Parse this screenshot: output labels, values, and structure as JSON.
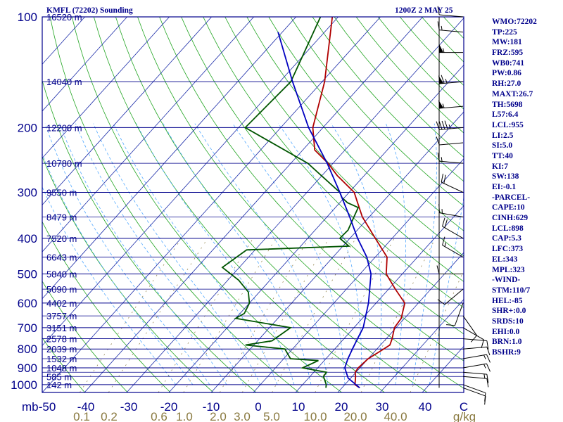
{
  "header": {
    "station_title": "KMFL (72202) Sounding",
    "time_label": "1200Z  2 MAY 25"
  },
  "stats": [
    "WMO:72202",
    "TP:225",
    "MW:181",
    "FRZ:595",
    "WB0:741",
    "PW:0.86",
    "RH:27.0",
    "MAXT:26.7",
    "TH:5698",
    "L57:6.4",
    "LCL:955",
    "LI:2.5",
    "SI:5.0",
    "TT:40",
    "KI:7",
    "SW:138",
    "EI:-0.1",
    "-PARCEL-",
    "CAPE:10",
    "CINH:629",
    "LCL:898",
    "CAP:5.3",
    "LFC:373",
    "EL:343",
    "MPL:323",
    "-WIND-",
    "STM:110/7",
    "HEL:-85",
    "SHR+:0.0",
    "SRDS:10",
    "EHI:0.0",
    "BRN:1.0",
    "BSHR:9"
  ],
  "colors": {
    "axis": "#00008b",
    "isobar": "#00008b",
    "isotherm": "#1a2ba8",
    "dry_adiabat": "#22a522",
    "moist_adiabat": "#55aaff",
    "mixing_ratio": "#8a7a40",
    "temperature": "#b00000",
    "dewpoint": "#005500",
    "parcel": "#0000c0",
    "mixing_label": "#8a7a40"
  },
  "chart_data": {
    "type": "line",
    "title": "",
    "y_axis_unit_label": "mb",
    "pressure_ticks": [
      "100",
      "200",
      "300",
      "400",
      "500",
      "600",
      "700",
      "800",
      "900",
      "1000"
    ],
    "height_labels": [
      {
        "p": 100,
        "label": "16520 m"
      },
      {
        "p": 150,
        "label": "14040 m"
      },
      {
        "p": 200,
        "label": "12200 m"
      },
      {
        "p": 250,
        "label": "10780 m"
      },
      {
        "p": 300,
        "label": "9550 m"
      },
      {
        "p": 350,
        "label": "8479 m"
      },
      {
        "p": 400,
        "label": "7520 m"
      },
      {
        "p": 450,
        "label": "6643 m"
      },
      {
        "p": 500,
        "label": "5840 m"
      },
      {
        "p": 550,
        "label": "5090 m"
      },
      {
        "p": 600,
        "label": "4402 m"
      },
      {
        "p": 650,
        "label": "3757 m"
      },
      {
        "p": 700,
        "label": "3151 m"
      },
      {
        "p": 750,
        "label": "2578 m"
      },
      {
        "p": 800,
        "label": "2039 m"
      },
      {
        "p": 850,
        "label": "1532 m"
      },
      {
        "p": 900,
        "label": "1048 m"
      },
      {
        "p": 950,
        "label": "585 m"
      },
      {
        "p": 1000,
        "label": "142 m"
      }
    ],
    "temperature_ticks": [
      "-50",
      "-40",
      "-30",
      "-20",
      "-10",
      "0",
      "10",
      "20",
      "30",
      "40",
      "C"
    ],
    "mixing_ratio_labels": [
      "0.1",
      "0.2",
      "0.6",
      "1.0",
      "2.0",
      "3.0",
      "5.0",
      "10.0",
      "20.0",
      "40.0",
      "g/kg"
    ],
    "xlim_C_at_surface": [
      -50,
      50
    ],
    "ylim_mb": [
      100,
      1050
    ],
    "grid": true,
    "series": [
      {
        "key": "temperature",
        "values": [
          [
            1020,
            24.2
          ],
          [
            1000,
            22.4
          ],
          [
            950,
            20.8
          ],
          [
            925,
            19.8
          ],
          [
            900,
            19.6
          ],
          [
            850,
            20.0
          ],
          [
            800,
            21.6
          ],
          [
            780,
            22.2
          ],
          [
            750,
            21.4
          ],
          [
            700,
            19.6
          ],
          [
            660,
            19.2
          ],
          [
            600,
            16.8
          ],
          [
            550,
            11.6
          ],
          [
            500,
            6.2
          ],
          [
            450,
            2.8
          ],
          [
            400,
            -4.0
          ],
          [
            350,
            -11.6
          ],
          [
            320,
            -15.8
          ],
          [
            300,
            -18.8
          ],
          [
            270,
            -26.4
          ],
          [
            250,
            -31.2
          ],
          [
            230,
            -37.2
          ],
          [
            200,
            -42.4
          ],
          [
            150,
            -49.4
          ],
          [
            100,
            -61.4
          ]
        ]
      },
      {
        "key": "dewpoint",
        "values": [
          [
            1020,
            16.2
          ],
          [
            1000,
            15.6
          ],
          [
            950,
            13.2
          ],
          [
            925,
            13.0
          ],
          [
            900,
            6.4
          ],
          [
            860,
            8.6
          ],
          [
            850,
            1.6
          ],
          [
            800,
            -1.8
          ],
          [
            780,
            -12.0
          ],
          [
            760,
            -6.6
          ],
          [
            700,
            -5.0
          ],
          [
            660,
            -20.0
          ],
          [
            640,
            -19.0
          ],
          [
            600,
            -20.0
          ],
          [
            560,
            -22.6
          ],
          [
            520,
            -27.4
          ],
          [
            480,
            -34.0
          ],
          [
            430,
            -32.0
          ],
          [
            420,
            -8.6
          ],
          [
            400,
            -12.4
          ],
          [
            380,
            -12.2
          ],
          [
            350,
            -13.6
          ],
          [
            330,
            -14.6
          ],
          [
            320,
            -18.2
          ],
          [
            310,
            -20.6
          ],
          [
            300,
            -22.2
          ],
          [
            250,
            -36.0
          ],
          [
            200,
            -58.4
          ],
          [
            150,
            -57.4
          ],
          [
            100,
            -64.2
          ]
        ]
      },
      {
        "key": "parcel",
        "values": [
          [
            1020,
            24.2
          ],
          [
            960,
            19.4
          ],
          [
            900,
            16.4
          ],
          [
            850,
            15.2
          ],
          [
            800,
            14.2
          ],
          [
            750,
            13.2
          ],
          [
            700,
            12.2
          ],
          [
            600,
            8.2
          ],
          [
            500,
            2.6
          ],
          [
            450,
            -2.0
          ],
          [
            400,
            -8.2
          ],
          [
            350,
            -14.6
          ],
          [
            300,
            -22.2
          ],
          [
            250,
            -31.4
          ],
          [
            200,
            -43.4
          ],
          [
            150,
            -57.0
          ],
          [
            110,
            -71.0
          ]
        ]
      }
    ],
    "wind_barbs_kt": [
      {
        "p": 1020,
        "dir": 110,
        "spd": 10
      },
      {
        "p": 1000,
        "dir": 110,
        "spd": 10
      },
      {
        "p": 950,
        "dir": 95,
        "spd": 10
      },
      {
        "p": 925,
        "dir": 95,
        "spd": 15
      },
      {
        "p": 900,
        "dir": 80,
        "spd": 15
      },
      {
        "p": 850,
        "dir": 80,
        "spd": 15
      },
      {
        "p": 800,
        "dir": 85,
        "spd": 10
      },
      {
        "p": 750,
        "dir": 95,
        "spd": 10
      },
      {
        "p": 700,
        "dir": 120,
        "spd": 10
      },
      {
        "p": 650,
        "dir": 145,
        "spd": 10
      },
      {
        "p": 600,
        "dir": 200,
        "spd": 10
      },
      {
        "p": 550,
        "dir": 230,
        "spd": 10
      },
      {
        "p": 500,
        "dir": 270,
        "spd": 10
      },
      {
        "p": 450,
        "dir": 300,
        "spd": 15
      },
      {
        "p": 400,
        "dir": 300,
        "spd": 20
      },
      {
        "p": 350,
        "dir": 280,
        "spd": 15
      },
      {
        "p": 300,
        "dir": 295,
        "spd": 20
      },
      {
        "p": 250,
        "dir": 275,
        "spd": 15
      },
      {
        "p": 220,
        "dir": 265,
        "spd": 10
      },
      {
        "p": 200,
        "dir": 265,
        "spd": 45
      },
      {
        "p": 175,
        "dir": 265,
        "spd": 55
      },
      {
        "p": 150,
        "dir": 265,
        "spd": 65
      },
      {
        "p": 125,
        "dir": 270,
        "spd": 55
      },
      {
        "p": 110,
        "dir": 275,
        "spd": 15
      },
      {
        "p": 100,
        "dir": 275,
        "spd": 10
      }
    ]
  }
}
